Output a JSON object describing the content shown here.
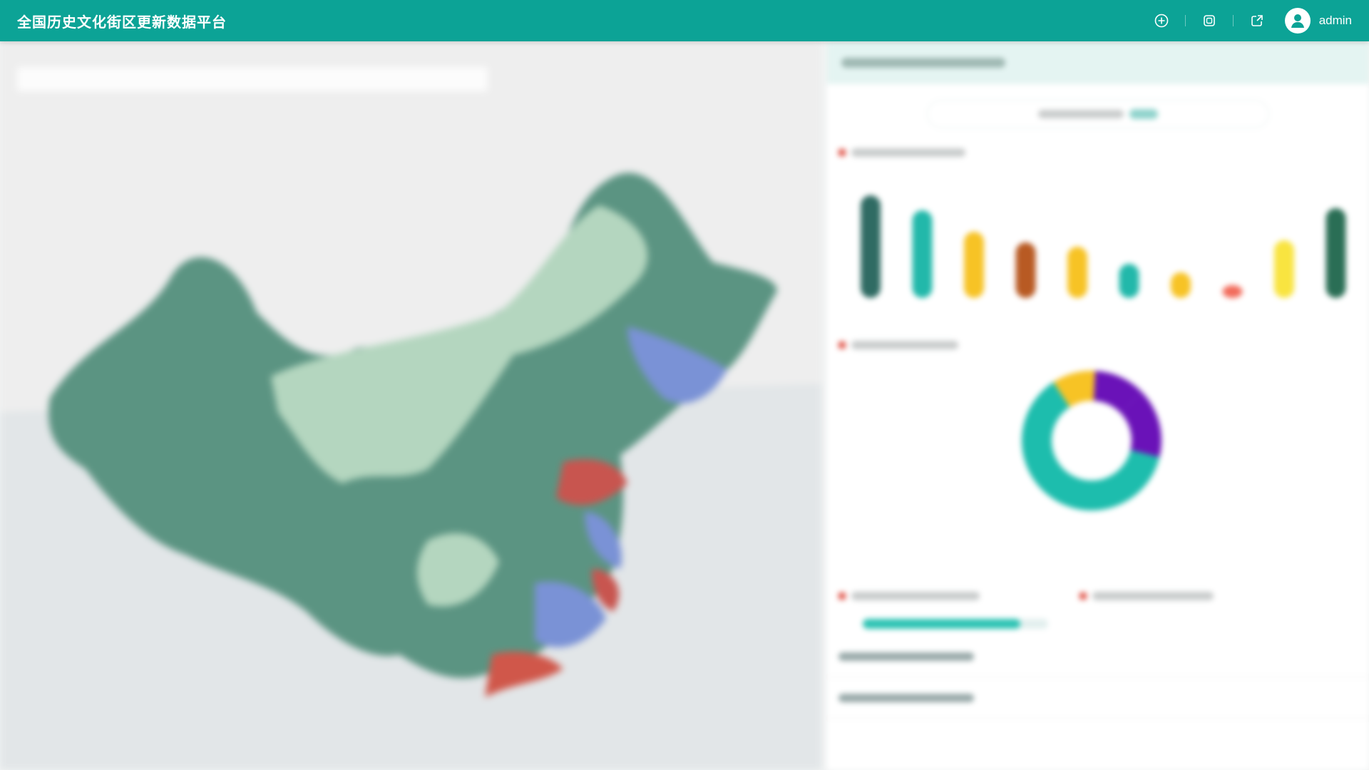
{
  "header": {
    "title": "全国历史文化街区更新数据平台",
    "user": "admin",
    "icons": [
      "plus-circle-icon",
      "layers-icon",
      "share-icon",
      "user-avatar-icon"
    ],
    "color": "#0ca396"
  },
  "bar_levels": [
    {
      "level": 0.96,
      "color": "#2f6b63"
    },
    {
      "level": 0.82,
      "color": "#22b8aa"
    },
    {
      "level": 0.62,
      "color": "#f7c325"
    },
    {
      "level": 0.52,
      "color": "#b85a23"
    },
    {
      "level": 0.48,
      "color": "#f7c325"
    },
    {
      "level": 0.32,
      "color": "#22b8aa"
    },
    {
      "level": 0.24,
      "color": "#f7c325"
    },
    {
      "level": 0.12,
      "color": "#f26b5b"
    },
    {
      "level": 0.54,
      "color": "#f9e440"
    },
    {
      "level": 0.84,
      "color": "#2a6e55"
    }
  ],
  "donut": [
    {
      "share": 0.12,
      "color": "#6a12b8"
    },
    {
      "share": 0.16,
      "color": "#6a12b8"
    },
    {
      "share": 0.62,
      "color": "#1dbdad"
    },
    {
      "share": 0.1,
      "color": "#f7c325"
    }
  ],
  "progress": 0.85
}
